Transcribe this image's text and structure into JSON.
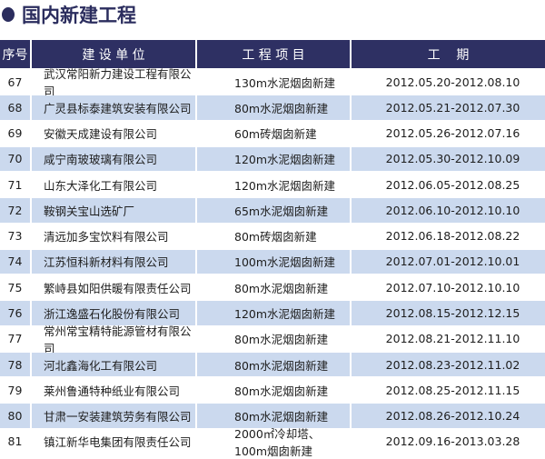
{
  "title": "国内新建工程",
  "colors": {
    "header_bg": "#2e3063",
    "alt_row_bg": "#cbd9ee",
    "title_color": "#2b2d5e"
  },
  "table": {
    "headers": [
      "序号",
      "建 设 单 位",
      "工 程 项 目",
      "工    期"
    ],
    "rows": [
      {
        "no": "67",
        "unit": "武汉常阳新力建设工程有限公司",
        "project": "130m水泥烟囱新建",
        "period": "2012.05.20-2012.08.10"
      },
      {
        "no": "68",
        "unit": "广灵县标泰建筑安装有限公司",
        "project": "80m水泥烟囱新建",
        "period": "2012.05.21-2012.07.30"
      },
      {
        "no": "69",
        "unit": "安徽天成建设有限公司",
        "project": "60m砖烟囱新建",
        "period": "2012.05.26-2012.07.16"
      },
      {
        "no": "70",
        "unit": "咸宁南玻玻璃有限公司",
        "project": "120m水泥烟囱新建",
        "period": "2012.05.30-2012.10.09"
      },
      {
        "no": "71",
        "unit": "山东大泽化工有限公司",
        "project": "120m水泥烟囱新建",
        "period": "2012.06.05-2012.08.25"
      },
      {
        "no": "72",
        "unit": "鞍钢关宝山选矿厂",
        "project": "65m水泥烟囱新建",
        "period": "2012.06.10-2012.10.10"
      },
      {
        "no": "73",
        "unit": "清远加多宝饮料有限公司",
        "project": "80m砖烟囱新建",
        "period": "2012.06.18-2012.08.22"
      },
      {
        "no": "74",
        "unit": "江苏恒科新材料有限公司",
        "project": "100m水泥烟囱新建",
        "period": "2012.07.01-2012.10.01"
      },
      {
        "no": "75",
        "unit": "繁峙县如阳供暖有限责任公司",
        "project": "80m水泥烟囱新建",
        "period": "2012.07.10-2012.10.10"
      },
      {
        "no": "76",
        "unit": "浙江逸盛石化股份有限公司",
        "project": "120m水泥烟囱新建",
        "period": "2012.08.15-2012.12.15"
      },
      {
        "no": "77",
        "unit": "常州常宝精特能源管材有限公司",
        "project": "80m水泥烟囱新建",
        "period": "2012.08.21-2012.11.10"
      },
      {
        "no": "78",
        "unit": "河北鑫海化工有限公司",
        "project": "80m水泥烟囱新建",
        "period": "2012.08.23-2012.11.02"
      },
      {
        "no": "79",
        "unit": "莱州鲁通特种纸业有限公司",
        "project": "80m水泥烟囱新建",
        "period": "2012.08.25-2012.11.15"
      },
      {
        "no": "80",
        "unit": "甘肃一安装建筑劳务有限公司",
        "project": "80m水泥烟囱新建",
        "period": "2012.08.26-2012.10.24"
      },
      {
        "no": "81",
        "unit": "镇江新华电集团有限责任公司",
        "project": "2000㎡冷却塔、100m烟囱新建",
        "period": "2012.09.16-2013.03.28"
      }
    ]
  }
}
